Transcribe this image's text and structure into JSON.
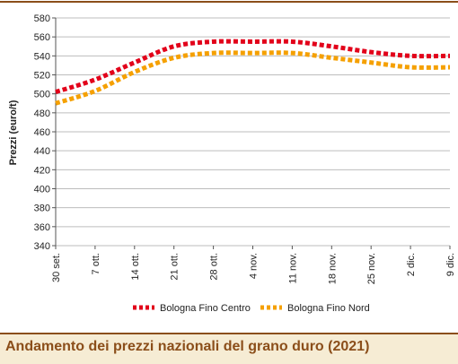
{
  "caption": "Andamento dei prezzi nazionali del grano duro (2021)",
  "colors": {
    "series_1": "#e2001a",
    "series_2": "#f5a000",
    "grid": "#bdbdbd",
    "accent": "#8b4e1a",
    "caption_bg": "#f6ecd4"
  },
  "chart_data": {
    "type": "line",
    "ylabel": "Prezzi (euro/t)",
    "xlabel": "",
    "ylim": [
      340,
      580
    ],
    "yticks": [
      340,
      360,
      380,
      400,
      420,
      440,
      460,
      480,
      500,
      520,
      540,
      560,
      580
    ],
    "categories": [
      "30 set.",
      "7 ott.",
      "14 ott.",
      "21 ott.",
      "28 ott.",
      "4 nov.",
      "11 nov.",
      "18 nov.",
      "25 nov.",
      "2 dic.",
      "9 dic."
    ],
    "grid": "horizontal",
    "legend_position": "bottom",
    "series": [
      {
        "name": "Bologna Fino Centro",
        "values": [
          502,
          515,
          533,
          550,
          555,
          555,
          555,
          550,
          544,
          540,
          540
        ]
      },
      {
        "name": "Bologna Fino Nord",
        "values": [
          490,
          503,
          523,
          538,
          543,
          543,
          543,
          538,
          533,
          528,
          528
        ]
      }
    ]
  }
}
